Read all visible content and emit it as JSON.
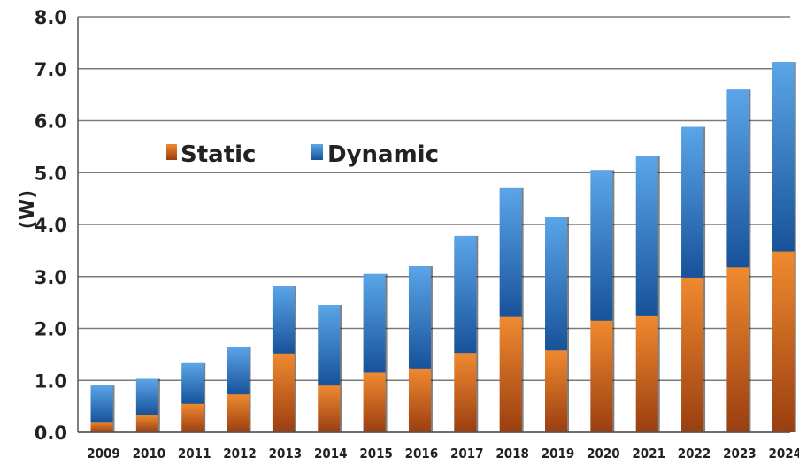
{
  "chart_data": {
    "type": "bar",
    "stacked": true,
    "title": "",
    "xlabel": "",
    "ylabel": "(W)",
    "ylim": [
      0,
      8
    ],
    "yticks": [
      "0.0",
      "1.0",
      "2.0",
      "3.0",
      "4.0",
      "5.0",
      "6.0",
      "7.0",
      "8.0"
    ],
    "grid": true,
    "legend_position": "upper-left",
    "categories": [
      "2009",
      "2010",
      "2011",
      "2012",
      "2013",
      "2014",
      "2015",
      "2016",
      "2017",
      "2018",
      "2019",
      "2020",
      "2021",
      "2022",
      "2023",
      "2024"
    ],
    "series": [
      {
        "name": "Static",
        "color": "#e8731d",
        "values": [
          0.2,
          0.33,
          0.55,
          0.73,
          1.52,
          0.9,
          1.15,
          1.23,
          1.53,
          2.22,
          1.58,
          2.15,
          2.25,
          2.98,
          3.18,
          3.48
        ]
      },
      {
        "name": "Dynamic",
        "color": "#2a74c4",
        "values": [
          0.7,
          0.7,
          0.78,
          0.92,
          1.3,
          1.55,
          1.9,
          1.97,
          2.25,
          2.48,
          2.57,
          2.9,
          3.07,
          2.9,
          3.42,
          3.65
        ]
      }
    ]
  }
}
